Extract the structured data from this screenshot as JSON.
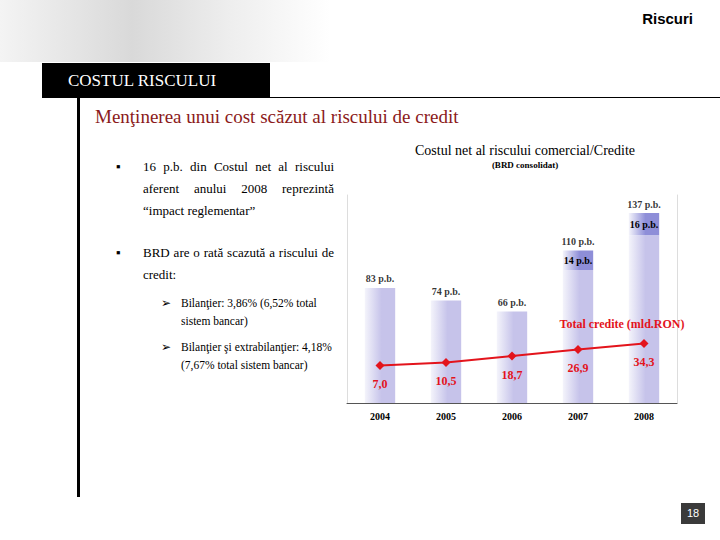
{
  "slide": {
    "header": "Riscuri",
    "section": "COSTUL RISCULUI",
    "title": "Menţinerea unui cost scăzut al riscului de credit",
    "bullets": [
      {
        "text": "16 p.b. din Costul net al riscului aferent anului 2008 reprezintă “impact reglementar”",
        "sub": []
      },
      {
        "text": "BRD are o rată scazută a riscului de credit:",
        "sub": [
          "Bilanţier: 3,86% (6,52% total sistem bancar)",
          "Bilanţier şi extrabilanţier: 4,18% (7,67% total sistem bancar)"
        ]
      }
    ],
    "page": "18"
  },
  "chart_data": {
    "type": "bar",
    "title": "Costul net al riscului comercial/Credite",
    "subtitle": "(BRD consolidat)",
    "categories": [
      "2004",
      "2005",
      "2006",
      "2007",
      "2008"
    ],
    "stacked": true,
    "series": [
      {
        "type": "bar",
        "color": "#c6c3ea",
        "values": [
          83,
          74,
          66,
          96,
          121
        ]
      },
      {
        "type": "bar",
        "color": "#8e8ed8",
        "values": [
          null,
          null,
          null,
          14,
          16
        ],
        "data_labels": true,
        "value_labels": [
          null,
          null,
          null,
          "14 p.b.",
          "16 p.b."
        ]
      },
      {
        "type": "line",
        "name": "Total credite (mld.RON)",
        "axis": "y2",
        "color": "#e3141c",
        "marker": "diamond",
        "data_labels": true,
        "values": [
          7.0,
          10.5,
          18.7,
          26.9,
          34.3
        ],
        "value_labels": [
          "7,0",
          "10,5",
          "18,7",
          "26,9",
          "34,3"
        ]
      }
    ],
    "total_labels": [
      "83 p.b.",
      "74 p.b.",
      "66 p.b.",
      "110 p.b.",
      "137 p.b."
    ],
    "ylim": [
      0,
      150
    ],
    "y2lim": [
      -40,
      220
    ],
    "tick_labels": "x",
    "grid": false
  }
}
